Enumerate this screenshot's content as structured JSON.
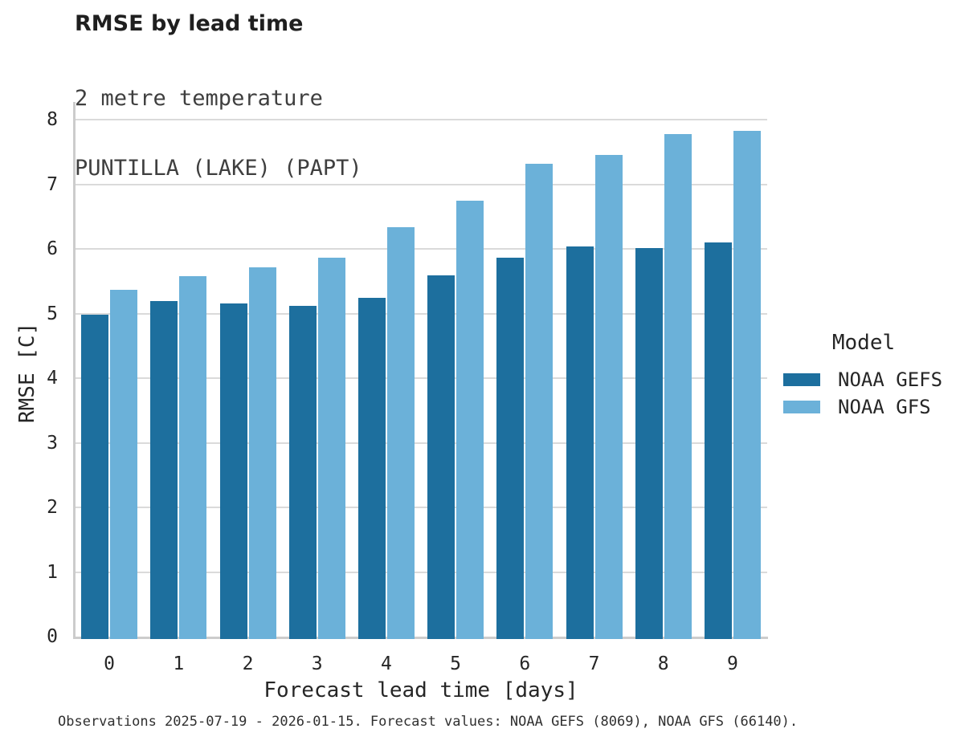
{
  "chart_data": {
    "type": "bar",
    "title": "RMSE by lead time",
    "subtitle": "2 metre temperature",
    "station": "PUNTILLA (LAKE) (PAPT)",
    "xlabel": "Forecast lead time [days]",
    "ylabel": "RMSE [C]",
    "categories": [
      "0",
      "1",
      "2",
      "3",
      "4",
      "5",
      "6",
      "7",
      "8",
      "9"
    ],
    "series": [
      {
        "name": "NOAA GEFS",
        "color": "#1d6f9e",
        "values": [
          4.98,
          5.19,
          5.16,
          5.12,
          5.24,
          5.59,
          5.86,
          6.04,
          6.01,
          6.1
        ]
      },
      {
        "name": "NOAA GFS",
        "color": "#6bb1d9",
        "values": [
          5.37,
          5.58,
          5.72,
          5.86,
          6.33,
          6.75,
          7.32,
          7.45,
          7.78,
          7.83
        ]
      }
    ],
    "ylim": [
      0,
      8
    ],
    "yticks": [
      "0",
      "1",
      "2",
      "3",
      "4",
      "5",
      "6",
      "7",
      "8"
    ],
    "grid": "horizontal",
    "legend": {
      "title": "Model",
      "position": "right"
    },
    "colors": {
      "gridline": "#dadada",
      "axis": "#cccccc"
    },
    "caption": "Observations 2025-07-19 - 2026-01-15. Forecast values: NOAA GEFS (8069), NOAA GFS (66140)."
  }
}
